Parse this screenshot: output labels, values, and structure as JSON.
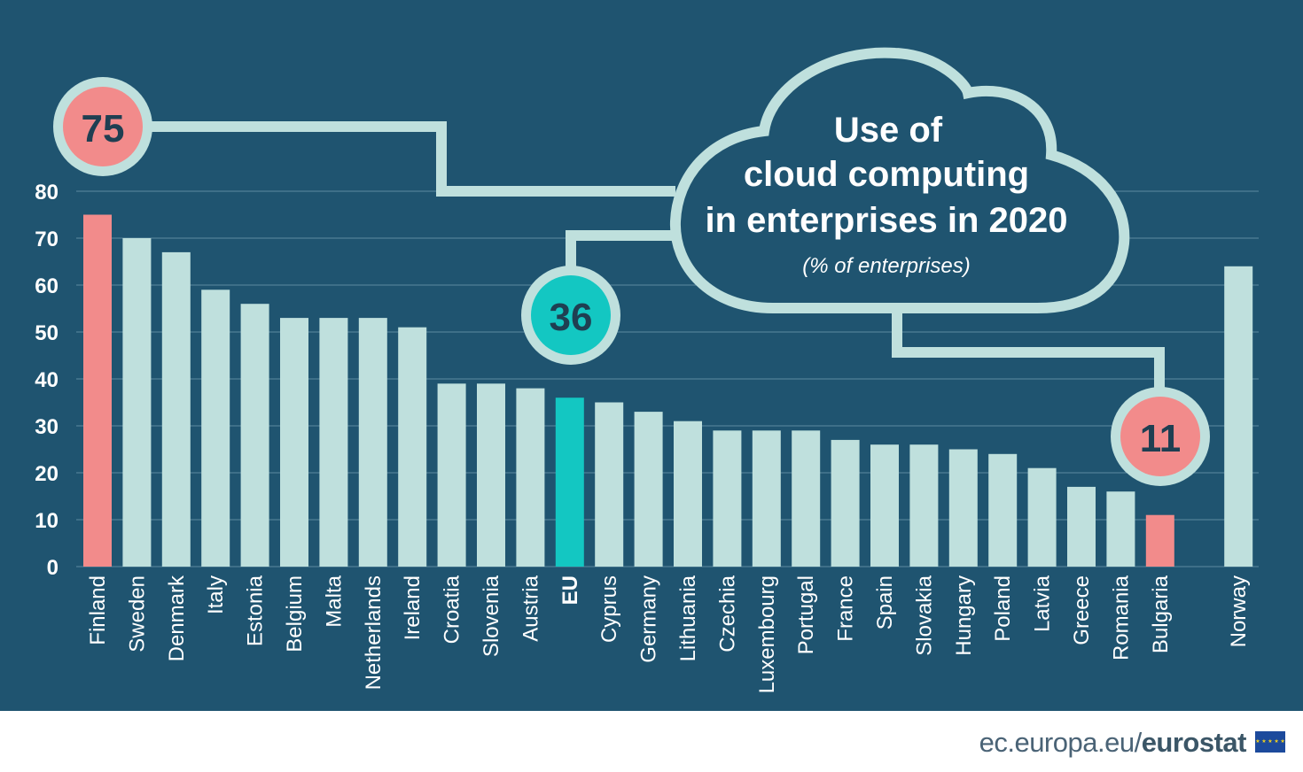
{
  "colors": {
    "background": "#1f5470",
    "bar_default": "#bfe0dd",
    "bar_highlight": "#f28b8b",
    "bar_eu": "#13c7c2",
    "badge_ring": "#bfe0dd",
    "gridline": "#5d8aa0"
  },
  "title": {
    "line1": "Use of",
    "line2": "cloud computing",
    "line3": "in enterprises in 2020",
    "subtitle": "(% of enterprises)"
  },
  "badges": {
    "max": "75",
    "eu": "36",
    "min": "11"
  },
  "footer": {
    "source_plain": "ec.europa.eu/",
    "source_brand": "eurostat"
  },
  "icons": {
    "eu_flag": "eu-flag-icon",
    "cloud": "cloud-icon"
  },
  "chart_data": {
    "type": "bar",
    "title": "Use of cloud computing in enterprises in 2020",
    "subtitle": "(% of enterprises)",
    "ylim": [
      0,
      80
    ],
    "yticks": [
      0,
      10,
      20,
      30,
      40,
      50,
      60,
      70,
      80
    ],
    "grid": true,
    "categories": [
      "Finland",
      "Sweden",
      "Denmark",
      "Italy",
      "Estonia",
      "Belgium",
      "Malta",
      "Netherlands",
      "Ireland",
      "Croatia",
      "Slovenia",
      "Austria",
      "EU",
      "Cyprus",
      "Germany",
      "Lithuania",
      "Czechia",
      "Luxembourg",
      "Portugal",
      "France",
      "Spain",
      "Slovakia",
      "Hungary",
      "Poland",
      "Latvia",
      "Greece",
      "Romania",
      "Bulgaria",
      "Norway"
    ],
    "values": [
      75,
      70,
      67,
      59,
      56,
      53,
      53,
      53,
      51,
      39,
      39,
      38,
      36,
      35,
      33,
      31,
      29,
      29,
      29,
      27,
      26,
      26,
      25,
      24,
      21,
      17,
      16,
      11,
      64
    ],
    "highlight": {
      "Finland": "bar_highlight",
      "Bulgaria": "bar_highlight",
      "EU": "bar_eu"
    },
    "bold_labels": [
      "EU"
    ]
  }
}
